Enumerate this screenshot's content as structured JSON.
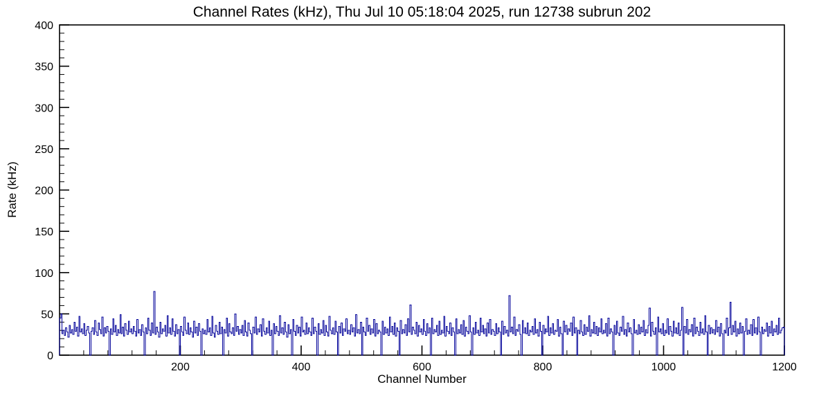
{
  "chart_data": {
    "type": "bar",
    "title": "Channel Rates (kHz), Thu Jul 10 05:18:04 2025, run 12738 subrun 202",
    "xlabel": "Channel Number",
    "ylabel": "Rate (kHz)",
    "xlim": [
      0,
      1200
    ],
    "ylim": [
      0,
      400
    ],
    "xticks": [
      200,
      400,
      600,
      800,
      1000,
      1200
    ],
    "yticks": [
      0,
      50,
      100,
      150,
      200,
      250,
      300,
      350,
      400
    ],
    "x_minor_step": 40,
    "y_minor_step": 10,
    "bin_width_channels": 2,
    "line_color": "#000099",
    "frame_color": "#000000",
    "values": [
      45,
      50,
      26,
      30,
      24,
      33,
      28,
      22,
      36,
      27,
      31,
      25,
      40,
      29,
      34,
      23,
      47,
      28,
      32,
      26,
      38,
      24,
      30,
      35,
      27,
      0,
      29,
      33,
      25,
      42,
      28,
      24,
      39,
      31,
      26,
      46,
      23,
      33,
      27,
      35,
      29,
      0,
      32,
      25,
      44,
      28,
      36,
      24,
      31,
      27,
      49,
      26,
      34,
      23,
      38,
      30,
      25,
      41,
      28,
      32,
      26,
      35,
      29,
      23,
      43,
      27,
      31,
      24,
      37,
      28,
      0,
      33,
      26,
      45,
      30,
      24,
      39,
      27,
      77,
      25,
      34,
      28,
      22,
      40,
      26,
      32,
      29,
      36,
      23,
      48,
      27,
      33,
      25,
      44,
      29,
      23,
      37,
      26,
      31,
      0,
      35,
      28,
      24,
      46,
      30,
      26,
      39,
      25,
      33,
      28,
      22,
      41,
      27,
      34,
      24,
      38,
      29,
      0,
      32,
      26,
      30,
      25,
      43,
      28,
      33,
      24,
      47,
      27,
      22,
      36,
      29,
      25,
      40,
      26,
      34,
      0,
      31,
      27,
      45,
      23,
      38,
      28,
      26,
      33,
      24,
      50,
      29,
      35,
      25,
      31,
      27,
      36,
      24,
      42,
      28,
      23,
      39,
      30,
      26,
      0,
      34,
      27,
      46,
      25,
      32,
      28,
      37,
      23,
      44,
      29,
      25,
      33,
      27,
      41,
      24,
      30,
      0,
      38,
      26,
      35,
      29,
      24,
      48,
      27,
      33,
      25,
      40,
      28,
      22,
      37,
      26,
      31,
      0,
      43,
      29,
      24,
      36,
      27,
      34,
      23,
      46,
      28,
      30,
      25,
      39,
      26,
      33,
      28,
      24,
      45,
      26,
      34,
      29,
      0,
      38,
      25,
      31,
      27,
      42,
      24,
      36,
      28,
      23,
      47,
      30,
      26,
      33,
      25,
      41,
      28,
      0,
      35,
      27,
      39,
      24,
      32,
      29,
      44,
      26,
      30,
      25,
      37,
      28,
      33,
      23,
      49,
      27,
      31,
      26,
      40,
      0,
      34,
      28,
      24,
      45,
      29,
      36,
      25,
      32,
      27,
      43,
      23,
      38,
      26,
      30,
      28,
      0,
      41,
      25,
      34,
      27,
      32,
      24,
      46,
      28,
      35,
      25,
      39,
      23,
      33,
      29,
      0,
      42,
      26,
      31,
      27,
      37,
      24,
      44,
      28,
      61,
      25,
      34,
      30,
      26,
      40,
      23,
      36,
      28,
      32,
      25,
      43,
      29,
      24,
      38,
      27,
      33,
      0,
      45,
      26,
      31,
      28,
      36,
      24,
      41,
      25,
      30,
      27,
      47,
      23,
      35,
      29,
      26,
      39,
      24,
      33,
      28,
      0,
      44,
      26,
      31,
      27,
      37,
      25,
      42,
      23,
      34,
      29,
      26,
      48,
      28,
      0,
      33,
      25,
      40,
      27,
      30,
      24,
      45,
      28,
      36,
      26,
      32,
      23,
      39,
      27,
      43,
      25,
      31,
      29,
      24,
      38,
      26,
      33,
      28,
      0,
      41,
      25,
      35,
      27,
      30,
      23,
      72,
      28,
      34,
      26,
      46,
      24,
      31,
      29,
      37,
      25,
      0,
      42,
      27,
      33,
      26,
      39,
      24,
      30,
      28,
      35,
      25,
      44,
      27,
      31,
      23,
      40,
      29,
      0,
      36,
      26,
      32,
      28,
      47,
      24,
      33,
      27,
      38,
      25,
      30,
      29,
      43,
      23,
      34,
      26,
      0,
      41,
      28,
      36,
      25,
      32,
      29,
      39,
      24,
      46,
      27,
      33,
      0,
      30,
      26,
      42,
      28,
      24,
      37,
      25,
      34,
      29,
      48,
      23,
      31,
      27,
      40,
      26,
      35,
      24,
      33,
      28,
      44,
      26,
      30,
      27,
      38,
      23,
      45,
      26,
      32,
      28,
      0,
      36,
      25,
      41,
      27,
      24,
      34,
      29,
      47,
      25,
      31,
      23,
      39,
      28,
      33,
      26,
      0,
      43,
      27,
      30,
      25,
      37,
      26,
      34,
      28,
      42,
      24,
      31,
      27,
      36,
      57,
      23,
      40,
      29,
      25,
      33,
      0,
      46,
      28,
      32,
      26,
      38,
      24,
      30,
      27,
      44,
      25,
      35,
      29,
      23,
      41,
      27,
      33,
      26,
      39,
      24,
      30,
      58,
      0,
      35,
      27,
      43,
      25,
      31,
      28,
      37,
      23,
      45,
      26,
      34,
      29,
      24,
      40,
      27,
      32,
      25,
      48,
      28,
      0,
      36,
      26,
      33,
      27,
      31,
      25,
      42,
      28,
      34,
      23,
      38,
      26,
      0,
      30,
      27,
      45,
      24,
      33,
      64,
      25,
      36,
      28,
      41,
      23,
      32,
      26,
      39,
      27,
      35,
      0,
      29,
      44,
      25,
      30,
      26,
      37,
      24,
      43,
      27,
      33,
      25,
      46,
      28,
      0,
      34,
      26,
      31,
      29,
      39,
      23,
      35,
      27,
      41,
      24,
      32,
      28,
      36,
      25,
      45,
      27,
      30,
      33,
      34
    ]
  }
}
